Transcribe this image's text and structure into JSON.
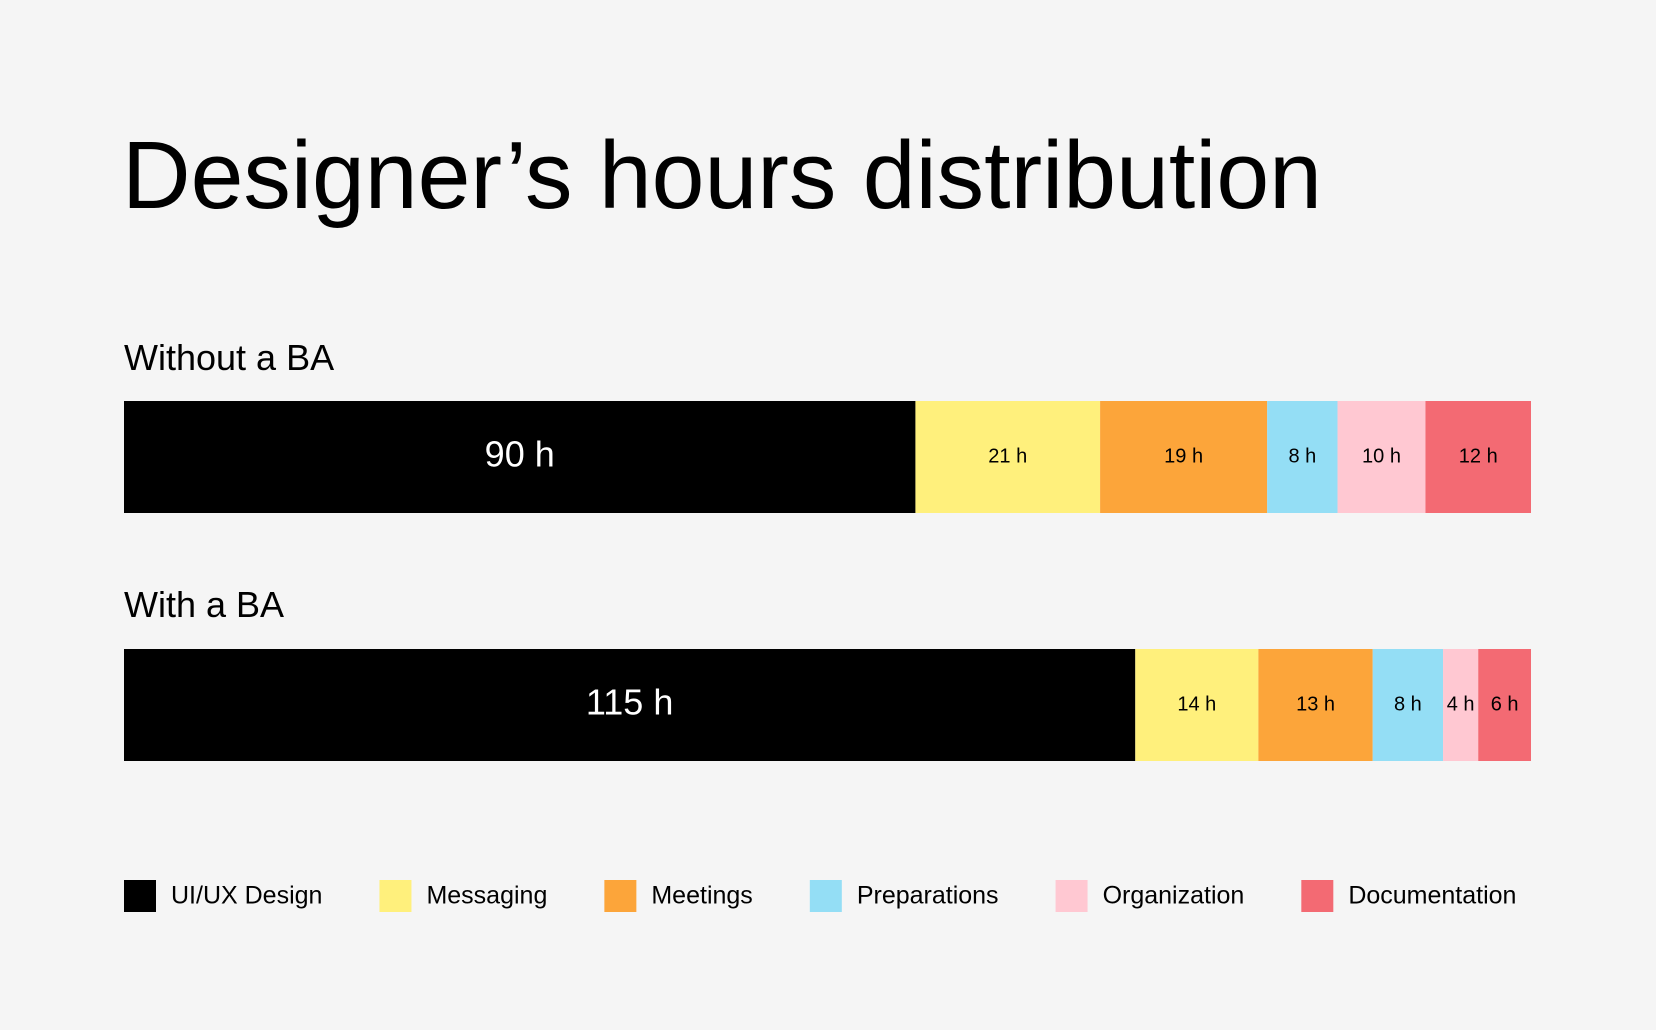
{
  "chart_data": {
    "type": "bar",
    "orientation": "horizontal",
    "stacked": true,
    "title": "Designer’s hours distribution",
    "categories": [
      "Without a BA",
      "With a BA"
    ],
    "series": [
      {
        "name": "UI/UX Design",
        "color": "#000000",
        "values": [
          90,
          115
        ],
        "value_labels": [
          "90 h",
          "115 h"
        ]
      },
      {
        "name": "Messaging",
        "color": "#fff07c",
        "values": [
          21,
          14
        ],
        "value_labels": [
          "21 h",
          "14 h"
        ]
      },
      {
        "name": "Meetings",
        "color": "#fca53a",
        "values": [
          19,
          13
        ],
        "value_labels": [
          "19 h",
          "13 h"
        ]
      },
      {
        "name": "Preparations",
        "color": "#94def5",
        "values": [
          8,
          8
        ],
        "value_labels": [
          "8 h",
          "8 h"
        ]
      },
      {
        "name": "Organization",
        "color": "#ffc8d2",
        "values": [
          10,
          4
        ],
        "value_labels": [
          "10 h",
          "4 h"
        ]
      },
      {
        "name": "Documentation",
        "color": "#f36a73",
        "values": [
          12,
          6
        ],
        "value_labels": [
          "12 h",
          "6 h"
        ]
      }
    ],
    "legend": "bottom-left"
  }
}
